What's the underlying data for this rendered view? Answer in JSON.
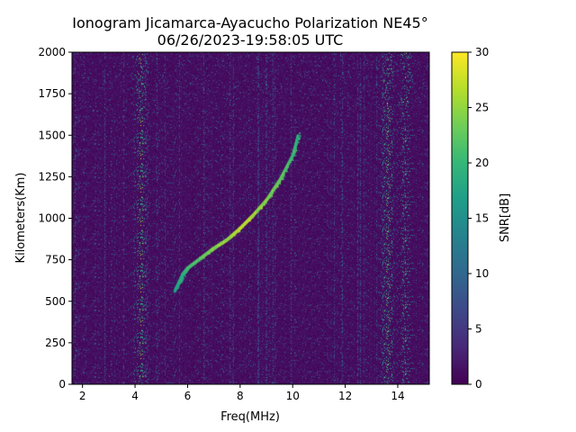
{
  "figure": {
    "title_line1": "Ionogram Jicamarca-Ayacucho Polarization NE45°",
    "title_line2": "06/26/2023-19:58:05 UTC"
  },
  "chart_data": {
    "type": "heatmap",
    "title": "Ionogram Jicamarca-Ayacucho Polarization NE45°",
    "subtitle": "06/26/2023-19:58:05 UTC",
    "xlabel": "Freq(MHz)",
    "ylabel": "Kilometers(Km)",
    "xlim": [
      1.6,
      15.2
    ],
    "ylim": [
      0,
      2000
    ],
    "xticks": [
      2,
      4,
      6,
      8,
      10,
      12,
      14
    ],
    "yticks": [
      0,
      250,
      500,
      750,
      1000,
      1250,
      1500,
      1750,
      2000
    ],
    "colorbar": {
      "label": "SNR[dB]",
      "range": [
        0,
        30
      ],
      "ticks": [
        0,
        5,
        10,
        15,
        20,
        25,
        30
      ],
      "colormap": "viridis"
    },
    "trace": {
      "description_points": [
        {
          "freq_mhz": 5.5,
          "km": 560
        },
        {
          "freq_mhz": 5.8,
          "km": 660
        },
        {
          "freq_mhz": 6.0,
          "km": 700
        },
        {
          "freq_mhz": 6.5,
          "km": 760
        },
        {
          "freq_mhz": 7.0,
          "km": 820
        },
        {
          "freq_mhz": 7.5,
          "km": 870
        },
        {
          "freq_mhz": 8.0,
          "km": 940
        },
        {
          "freq_mhz": 8.5,
          "km": 1020
        },
        {
          "freq_mhz": 9.0,
          "km": 1110
        },
        {
          "freq_mhz": 9.5,
          "km": 1230
        },
        {
          "freq_mhz": 10.0,
          "km": 1380
        },
        {
          "freq_mhz": 10.2,
          "km": 1500
        }
      ],
      "peak_snr_db": 30
    },
    "noise_bands_mhz": [
      4.2,
      13.6,
      14.3
    ],
    "grid": false
  }
}
